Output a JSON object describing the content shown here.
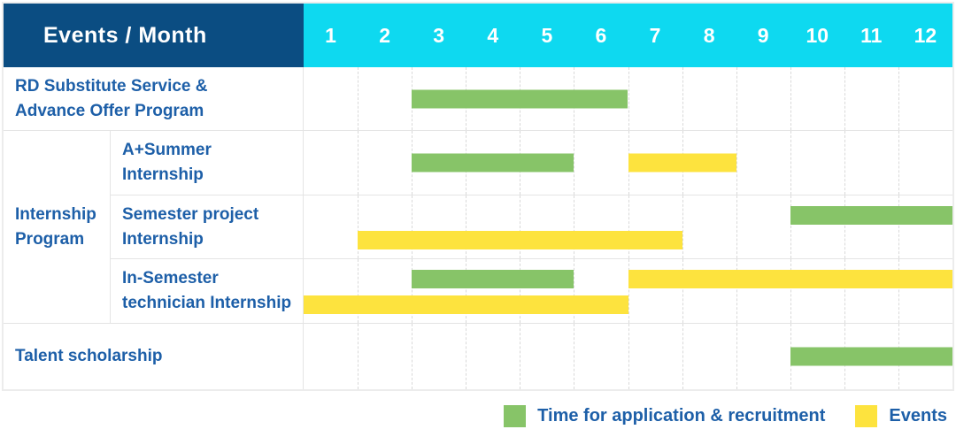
{
  "header": {
    "title": "Events / Month"
  },
  "colors": {
    "header_bg": "#0b4d82",
    "month_bar_bg": "#0ed9f0",
    "green": "#87c468",
    "yellow": "#fde33e",
    "label_text": "#1d5fa8",
    "grid_line": "#e4e4e4"
  },
  "chart_data": {
    "type": "table",
    "subtype": "gantt",
    "title": "Events / Month",
    "x": {
      "label": "Month",
      "ticks": [
        "1",
        "2",
        "3",
        "4",
        "5",
        "6",
        "7",
        "8",
        "9",
        "10",
        "11",
        "12"
      ],
      "range": [
        1,
        12
      ],
      "grid": "dashed vertical month separators"
    },
    "series_meaning": {
      "green": "Time for application & recruitment",
      "yellow": "Events"
    },
    "rows": [
      {
        "event": "RD Substitute Service & Advance Offer Program",
        "event_lines": [
          "RD Substitute Service &",
          "Advance Offer Program"
        ],
        "group": null,
        "bars": [
          {
            "series": "Time for application & recruitment",
            "color": "green",
            "start_month": 3,
            "end_month": 6,
            "lane": "center"
          }
        ]
      },
      {
        "event": "A+Summer Internship",
        "event_lines": [
          "A+Summer",
          "Internship"
        ],
        "group": "Internship Program",
        "group_start": true,
        "group_lines": [
          "Internship",
          "Program"
        ],
        "group_span": 3,
        "bars": [
          {
            "series": "Time for application & recruitment",
            "color": "green",
            "start_month": 3,
            "end_month": 5,
            "lane": "center"
          },
          {
            "series": "Events",
            "color": "yellow",
            "start_month": 7,
            "end_month": 8,
            "lane": "center"
          }
        ]
      },
      {
        "event": "Semester project Internship",
        "event_lines": [
          "Semester project",
          "Internship"
        ],
        "group": "Internship Program",
        "bars": [
          {
            "series": "Time for application & recruitment",
            "color": "green",
            "start_month": 10,
            "end_month": 12,
            "lane": "top"
          },
          {
            "series": "Events",
            "color": "yellow",
            "start_month": 2,
            "end_month": 7,
            "lane": "bottom"
          }
        ]
      },
      {
        "event": "In-Semester technician Internship",
        "event_lines": [
          "In-Semester",
          "technician Internship"
        ],
        "group": "Internship Program",
        "bars": [
          {
            "series": "Time for application & recruitment",
            "color": "green",
            "start_month": 3,
            "end_month": 5,
            "lane": "top"
          },
          {
            "series": "Events",
            "color": "yellow",
            "start_month": 7,
            "end_month": 12,
            "lane": "top"
          },
          {
            "series": "Events",
            "color": "yellow",
            "start_month": 1,
            "end_month": 6,
            "lane": "bottom"
          }
        ]
      },
      {
        "event": "Talent scholarship",
        "event_lines": [
          "Talent scholarship"
        ],
        "group": null,
        "bars": [
          {
            "series": "Time for application & recruitment",
            "color": "green",
            "start_month": 10,
            "end_month": 12,
            "lane": "center"
          }
        ]
      }
    ],
    "legend": [
      {
        "color": "green",
        "label": "Time for application & recruitment"
      },
      {
        "color": "yellow",
        "label": "Events"
      }
    ],
    "legend_position": "bottom-right"
  }
}
